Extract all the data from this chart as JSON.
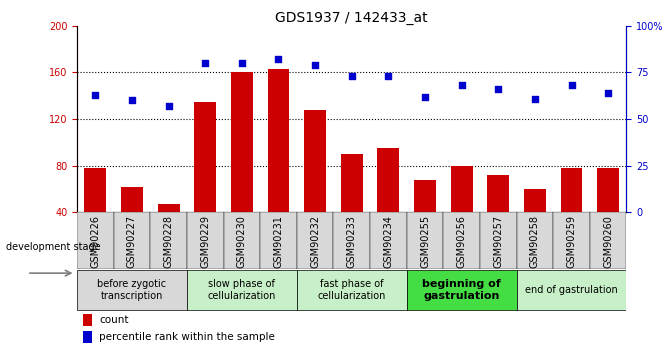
{
  "title": "GDS1937 / 142433_at",
  "samples": [
    "GSM90226",
    "GSM90227",
    "GSM90228",
    "GSM90229",
    "GSM90230",
    "GSM90231",
    "GSM90232",
    "GSM90233",
    "GSM90234",
    "GSM90255",
    "GSM90256",
    "GSM90257",
    "GSM90258",
    "GSM90259",
    "GSM90260"
  ],
  "counts": [
    78,
    62,
    47,
    135,
    160,
    163,
    128,
    90,
    95,
    68,
    80,
    72,
    60,
    78,
    78
  ],
  "percentiles": [
    63,
    60,
    57,
    80,
    80,
    82,
    79,
    73,
    73,
    62,
    68,
    66,
    61,
    68,
    64
  ],
  "ylim_left": [
    40,
    200
  ],
  "ylim_right": [
    0,
    100
  ],
  "yticks_left": [
    40,
    80,
    120,
    160,
    200
  ],
  "yticks_right": [
    0,
    25,
    50,
    75,
    100
  ],
  "bar_color": "#cc0000",
  "dot_color": "#0000cc",
  "grid_yticks": [
    80,
    120,
    160
  ],
  "stages": [
    {
      "label": "before zygotic\ntranscription",
      "samples": [
        "GSM90226",
        "GSM90227",
        "GSM90228"
      ],
      "color": "#d8d8d8",
      "bold": false
    },
    {
      "label": "slow phase of\ncellularization",
      "samples": [
        "GSM90229",
        "GSM90230",
        "GSM90231"
      ],
      "color": "#c8f0c8",
      "bold": false
    },
    {
      "label": "fast phase of\ncellularization",
      "samples": [
        "GSM90232",
        "GSM90233",
        "GSM90234"
      ],
      "color": "#c8f0c8",
      "bold": false
    },
    {
      "label": "beginning of\ngastrulation",
      "samples": [
        "GSM90255",
        "GSM90256",
        "GSM90257"
      ],
      "color": "#44dd44",
      "bold": true
    },
    {
      "label": "end of gastrulation",
      "samples": [
        "GSM90258",
        "GSM90259",
        "GSM90260"
      ],
      "color": "#c8f0c8",
      "bold": false
    }
  ],
  "legend_count_label": "count",
  "legend_pct_label": "percentile rank within the sample",
  "dev_stage_label": "development stage",
  "title_fontsize": 10,
  "tick_fontsize": 7,
  "label_fontsize": 7,
  "stage_fontsize": 7
}
